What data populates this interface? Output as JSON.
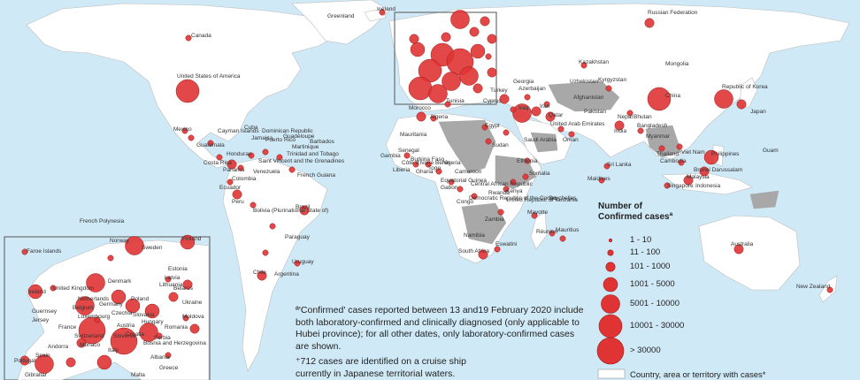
{
  "colors": {
    "ocean": "#cfe9f6",
    "land": "#ffffff",
    "land_affected_grey": "#a8a8a8",
    "marker_fill": "#e03434",
    "marker_stroke": "#9c1d1d",
    "border": "#b9b9b9",
    "inset_frame": "#6f6f6f"
  },
  "legend": {
    "title_line1": "Number of",
    "title_line2": "Confirmed casesª",
    "items": [
      {
        "label": "1 - 10",
        "size_class": 1
      },
      {
        "label": "11 - 100",
        "size_class": 2
      },
      {
        "label": "101 - 1000",
        "size_class": 3
      },
      {
        "label": "1001 - 5000",
        "size_class": 4
      },
      {
        "label": "5001 - 10000",
        "size_class": 5
      },
      {
        "label": "10001 - 30000",
        "size_class": 6
      },
      {
        "label": "> 30000",
        "size_class": 7
      }
    ],
    "country_label": "Country, area or territory with cases*"
  },
  "notes": {
    "footnote_a": "ª'Confirmed' cases reported between 13 and19 February 2020 include both laboratory-confirmed and clinically diagnosed (only applicable to Hubei province); for all other dates, only laboratory-confirmed cases are shown.",
    "footnote_b": "⁺712 cases are identified on a cruise ship currently in Japanese territorial waters."
  },
  "country_labels": [
    "Canada",
    "United States of America",
    "Mexico",
    "Cayman Islands",
    "Cuba",
    "Guatemala",
    "Honduras",
    "Costa Rica",
    "Panama",
    "Colombia",
    "Ecuador",
    "Peru",
    "Bolivia (Plurinational State of)",
    "Brazil",
    "Paraguay",
    "Uruguay",
    "Chile",
    "Argentina",
    "Jamaica",
    "Dominican Republic",
    "Puerto Rico",
    "Saint Vincent and the Grenadines",
    "Trinidad and Tobago",
    "French Guiana",
    "Barbados",
    "Martinique",
    "Guadeloupe",
    "Venezuela",
    "Iceland",
    "Greenland",
    "Russian Federation",
    "Kazakhstan",
    "Mongolia",
    "China",
    "Japan",
    "Republic of Korea",
    "Uzbekistan",
    "Kyrgyzstan",
    "Pakistan",
    "India",
    "Nepal",
    "Bhutan",
    "Sri Lanka",
    "Maldives",
    "Bangladesh",
    "Myanmar",
    "Thailand",
    "Cambodia",
    "Viet Nam",
    "Philippines",
    "Malaysia",
    "Singapore",
    "Indonesia",
    "Brunei Darussalam",
    "Guam",
    "Australia",
    "New Zealand",
    "French Polynesia",
    "Morocco",
    "Algeria",
    "Tunisia",
    "Mauritania",
    "Senegal",
    "Gambia",
    "Burkina Faso",
    "Nigeria",
    "Cameroon",
    "Ghana",
    "Togo",
    "Benin",
    "Liberia",
    "Côte d'Ivoire",
    "Equatorial Guinea",
    "Gabon",
    "Congo",
    "Democratic Republic of the Congo",
    "Central African Republic",
    "Sudan",
    "Ethiopia",
    "Kenya",
    "Somalia",
    "United Republic of Tanzania",
    "Rwanda",
    "Zambia",
    "Namibia",
    "South Africa",
    "Eswatini",
    "Mayotte",
    "Réunion",
    "Mauritius",
    "Seychelles",
    "Egypt",
    "Turkey",
    "Cyprus",
    "Georgia",
    "Azerbaijan",
    "Saudi Arabia",
    "United Arab Emirates",
    "Oman",
    "Qatar",
    "Iran",
    "Iraq",
    "Afghanistan",
    "Faroe Islands",
    "Norway",
    "Sweden",
    "Finland",
    "Estonia",
    "Latvia",
    "Lithuania",
    "Denmark",
    "Ireland",
    "United Kingdom",
    "Netherlands",
    "Belgium",
    "Germany",
    "Poland",
    "Czechia",
    "France",
    "Switzerland",
    "Austria",
    "Italy",
    "Spain",
    "Andorra",
    "Portugal",
    "Gibraltar",
    "Malta",
    "Albania",
    "Greece",
    "Guernsey",
    "Jersey",
    "Monaco",
    "Croatia",
    "Slovenia",
    "Bosnia and Herzegovina",
    "Serbia",
    "Hungary",
    "Romania",
    "Belarus",
    "Ukraine",
    "Moldova",
    "Luxembourg",
    "Slovakia"
  ]
}
